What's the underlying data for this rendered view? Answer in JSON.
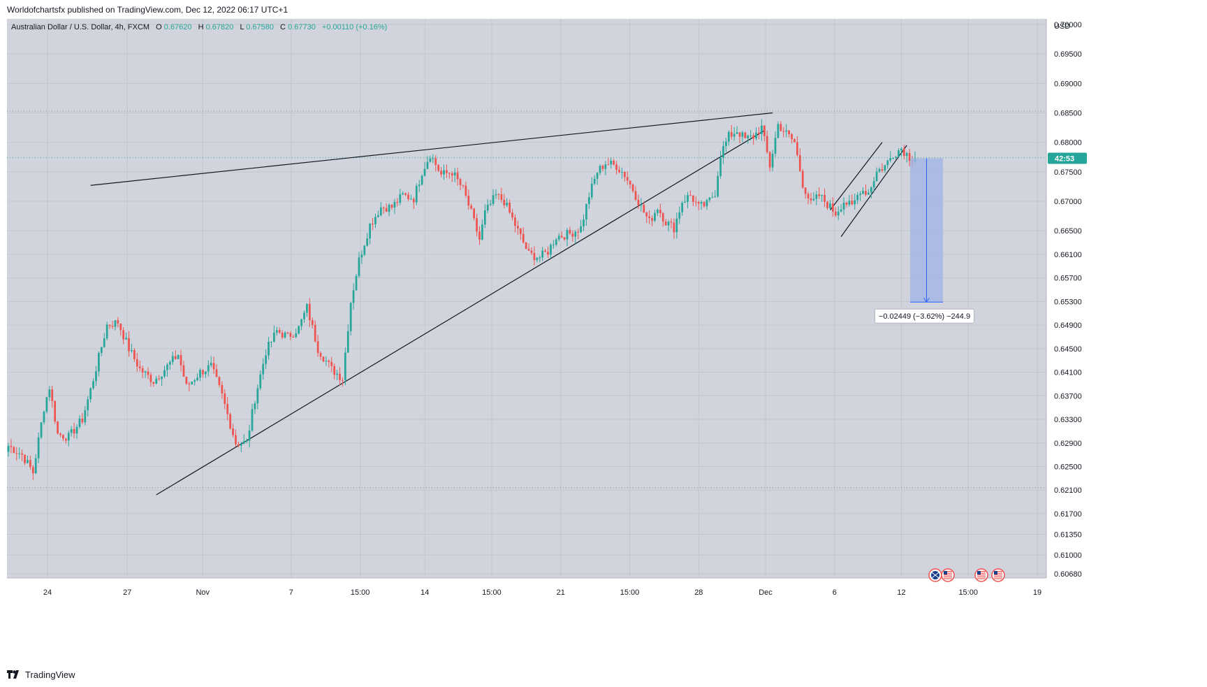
{
  "publish_line": "Worldofchartsfx published on TradingView.com, Dec 12, 2022 06:17 UTC+1",
  "legend": {
    "symbol": "Australian Dollar / U.S. Dollar, 4h, FXCM",
    "o_label": "O",
    "o_value": "0.67620",
    "h_label": "H",
    "h_value": "0.67820",
    "l_label": "L",
    "l_value": "0.67580",
    "c_label": "C",
    "c_value": "0.67730",
    "change": "+0.00110 (+0.16%)"
  },
  "currency_label": "USD",
  "countdown": "42:53",
  "measure_label": "−0.02449 (−3.62%) −244.9",
  "footer_brand": "TradingView",
  "colors": {
    "background": "#d1d4dc",
    "up": "#26a69a",
    "down": "#ef5350",
    "price_line": "#26a69a",
    "measure_fill": "#9fb3e6",
    "measure_stroke": "#2962ff"
  },
  "chart_data": {
    "type": "candlestick",
    "symbol": "AUDUSD",
    "interval": "4h",
    "ylim": [
      0.6068,
      0.7
    ],
    "y_ticks": [
      "0.70000",
      "0.69500",
      "0.69000",
      "0.68500",
      "0.68000",
      "0.67500",
      "0.67000",
      "0.66500",
      "0.66100",
      "0.65700",
      "0.65300",
      "0.64900",
      "0.64500",
      "0.64100",
      "0.63700",
      "0.63300",
      "0.62900",
      "0.62500",
      "0.62100",
      "0.61700",
      "0.61350",
      "0.61000",
      "0.60680"
    ],
    "x_ticks": [
      "24",
      "27",
      "Nov",
      "7",
      "15:00",
      "14",
      "15:00",
      "21",
      "15:00",
      "28",
      "Dec",
      "6",
      "12",
      "15:00",
      "19"
    ],
    "horizontal_levels": [
      0.6853,
      0.6774,
      0.6214
    ],
    "current_price": 0.6773,
    "measure": {
      "from": 0.6773,
      "to": 0.6529,
      "label": "−0.02449 (−3.62%) −244.9"
    },
    "waypoints": [
      [
        0,
        0.6285
      ],
      [
        5,
        0.627
      ],
      [
        7,
        0.6255
      ],
      [
        9,
        0.624
      ],
      [
        13,
        0.635
      ],
      [
        15,
        0.6385
      ],
      [
        18,
        0.6305
      ],
      [
        22,
        0.63
      ],
      [
        27,
        0.633
      ],
      [
        30,
        0.638
      ],
      [
        36,
        0.649
      ],
      [
        40,
        0.6495
      ],
      [
        44,
        0.645
      ],
      [
        48,
        0.6415
      ],
      [
        53,
        0.6395
      ],
      [
        58,
        0.642
      ],
      [
        62,
        0.644
      ],
      [
        65,
        0.6385
      ],
      [
        70,
        0.641
      ],
      [
        74,
        0.642
      ],
      [
        78,
        0.637
      ],
      [
        83,
        0.629
      ],
      [
        87,
        0.629
      ],
      [
        90,
        0.6365
      ],
      [
        94,
        0.6445
      ],
      [
        98,
        0.648
      ],
      [
        102,
        0.647
      ],
      [
        106,
        0.6485
      ],
      [
        109,
        0.652
      ],
      [
        113,
        0.645
      ],
      [
        118,
        0.6415
      ],
      [
        122,
        0.64
      ],
      [
        125,
        0.653
      ],
      [
        128,
        0.66
      ],
      [
        132,
        0.666
      ],
      [
        136,
        0.669
      ],
      [
        140,
        0.669
      ],
      [
        144,
        0.671
      ],
      [
        148,
        0.6705
      ],
      [
        151,
        0.675
      ],
      [
        154,
        0.678
      ],
      [
        158,
        0.6745
      ],
      [
        162,
        0.675
      ],
      [
        166,
        0.672
      ],
      [
        169,
        0.668
      ],
      [
        172,
        0.6635
      ],
      [
        174,
        0.668
      ],
      [
        178,
        0.671
      ],
      [
        181,
        0.67
      ],
      [
        184,
        0.667
      ],
      [
        187,
        0.664
      ],
      [
        190,
        0.661
      ],
      [
        194,
        0.6605
      ],
      [
        197,
        0.6615
      ],
      [
        200,
        0.664
      ],
      [
        205,
        0.6645
      ],
      [
        209,
        0.6655
      ],
      [
        212,
        0.671
      ],
      [
        215,
        0.675
      ],
      [
        218,
        0.6765
      ],
      [
        222,
        0.676
      ],
      [
        225,
        0.6745
      ],
      [
        228,
        0.672
      ],
      [
        231,
        0.669
      ],
      [
        234,
        0.6665
      ],
      [
        237,
        0.669
      ],
      [
        240,
        0.6665
      ],
      [
        243,
        0.6655
      ],
      [
        246,
        0.67
      ],
      [
        249,
        0.671
      ],
      [
        252,
        0.669
      ],
      [
        255,
        0.6695
      ],
      [
        258,
        0.6715
      ],
      [
        260,
        0.678
      ],
      [
        263,
        0.681
      ],
      [
        266,
        0.682
      ],
      [
        269,
        0.6805
      ],
      [
        272,
        0.681
      ],
      [
        275,
        0.6825
      ],
      [
        278,
        0.676
      ],
      [
        281,
        0.683
      ],
      [
        284,
        0.6815
      ],
      [
        287,
        0.68
      ],
      [
        290,
        0.673
      ],
      [
        293,
        0.6695
      ],
      [
        296,
        0.671
      ],
      [
        299,
        0.6695
      ],
      [
        302,
        0.668
      ],
      [
        305,
        0.67
      ],
      [
        308,
        0.669
      ],
      [
        311,
        0.672
      ],
      [
        314,
        0.6715
      ],
      [
        317,
        0.675
      ],
      [
        320,
        0.676
      ],
      [
        323,
        0.678
      ],
      [
        326,
        0.679
      ],
      [
        329,
        0.6775
      ],
      [
        331,
        0.6773
      ]
    ],
    "trendlines": [
      {
        "name": "upper",
        "from": [
          30,
          0.6727
        ],
        "to": [
          279,
          0.685
        ]
      },
      {
        "name": "lower",
        "from": [
          54,
          0.6202
        ],
        "to": [
          276,
          0.682
        ]
      },
      {
        "name": "channel-upper",
        "from": [
          300,
          0.6685
        ],
        "to": [
          319,
          0.68
        ]
      },
      {
        "name": "channel-lower",
        "from": [
          304,
          0.664
        ],
        "to": [
          328,
          0.6795
        ]
      }
    ]
  }
}
